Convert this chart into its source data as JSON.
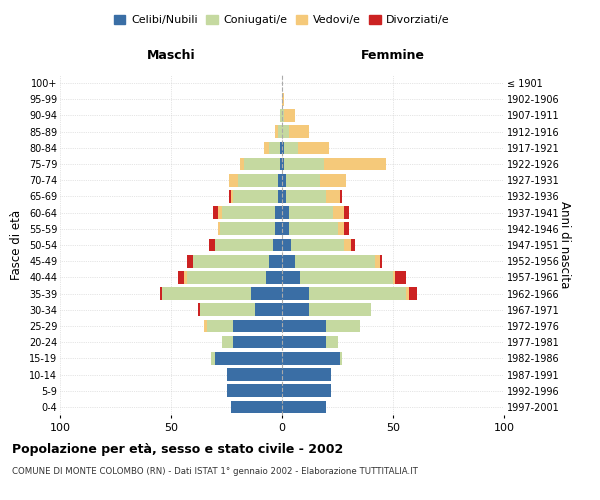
{
  "age_groups": [
    "0-4",
    "5-9",
    "10-14",
    "15-19",
    "20-24",
    "25-29",
    "30-34",
    "35-39",
    "40-44",
    "45-49",
    "50-54",
    "55-59",
    "60-64",
    "65-69",
    "70-74",
    "75-79",
    "80-84",
    "85-89",
    "90-94",
    "95-99",
    "100+"
  ],
  "birth_years": [
    "1997-2001",
    "1992-1996",
    "1987-1991",
    "1982-1986",
    "1977-1981",
    "1972-1976",
    "1967-1971",
    "1962-1966",
    "1957-1961",
    "1952-1956",
    "1947-1951",
    "1942-1946",
    "1937-1941",
    "1932-1936",
    "1927-1931",
    "1922-1926",
    "1917-1921",
    "1912-1916",
    "1907-1911",
    "1902-1906",
    "≤ 1901"
  ],
  "colors": {
    "celibi": "#3a6ea5",
    "coniugati": "#c5d9a0",
    "vedovi": "#f5c97a",
    "divorziati": "#cc2222"
  },
  "males": {
    "celibi": [
      23,
      25,
      25,
      30,
      22,
      22,
      12,
      14,
      7,
      6,
      4,
      3,
      3,
      2,
      2,
      1,
      1,
      0,
      0,
      0,
      0
    ],
    "coniugati": [
      0,
      0,
      0,
      2,
      5,
      12,
      25,
      40,
      36,
      34,
      26,
      25,
      24,
      20,
      18,
      16,
      5,
      2,
      1,
      0,
      0
    ],
    "vedovi": [
      0,
      0,
      0,
      0,
      0,
      1,
      0,
      0,
      1,
      0,
      0,
      1,
      2,
      1,
      4,
      2,
      2,
      1,
      0,
      0,
      0
    ],
    "divorziati": [
      0,
      0,
      0,
      0,
      0,
      0,
      1,
      1,
      3,
      3,
      3,
      0,
      2,
      1,
      0,
      0,
      0,
      0,
      0,
      0,
      0
    ]
  },
  "females": {
    "celibi": [
      20,
      22,
      22,
      26,
      20,
      20,
      12,
      12,
      8,
      6,
      4,
      3,
      3,
      2,
      2,
      1,
      1,
      0,
      0,
      0,
      0
    ],
    "coniugati": [
      0,
      0,
      0,
      1,
      5,
      15,
      28,
      44,
      42,
      36,
      24,
      22,
      20,
      18,
      15,
      18,
      6,
      3,
      1,
      0,
      0
    ],
    "vedovi": [
      0,
      0,
      0,
      0,
      0,
      0,
      0,
      1,
      1,
      2,
      3,
      3,
      5,
      6,
      12,
      28,
      14,
      9,
      5,
      1,
      0
    ],
    "divorziati": [
      0,
      0,
      0,
      0,
      0,
      0,
      0,
      4,
      5,
      1,
      2,
      2,
      2,
      1,
      0,
      0,
      0,
      0,
      0,
      0,
      0
    ]
  },
  "title": "Popolazione per età, sesso e stato civile - 2002",
  "subtitle": "COMUNE DI MONTE COLOMBO (RN) - Dati ISTAT 1° gennaio 2002 - Elaborazione TUTTITALIA.IT",
  "xlabel_left": "Maschi",
  "xlabel_right": "Femmine",
  "ylabel_left": "Fasce di età",
  "ylabel_right": "Anni di nascita",
  "xlim": 100,
  "legend_labels": [
    "Celibi/Nubili",
    "Coniugati/e",
    "Vedovi/e",
    "Divorziati/e"
  ],
  "bg_color": "#ffffff",
  "grid_color": "#cccccc"
}
